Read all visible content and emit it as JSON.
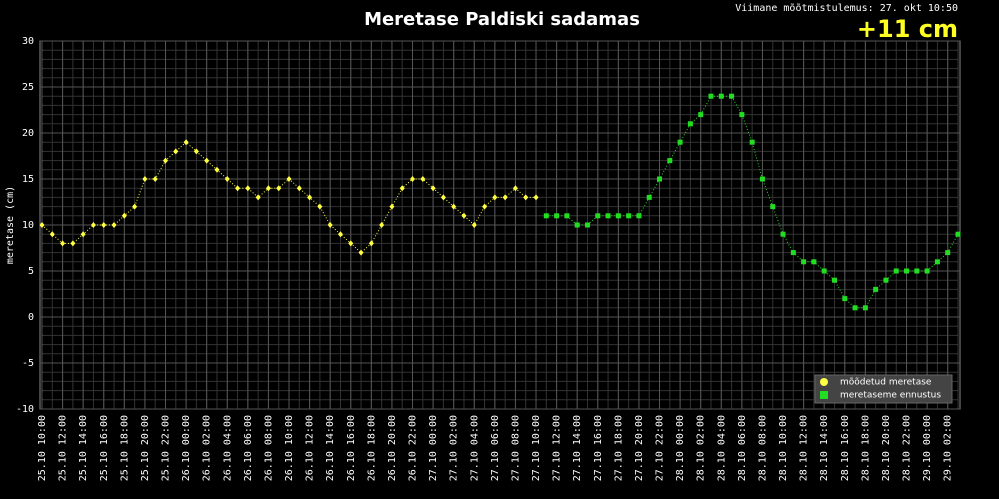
{
  "chart_data": {
    "type": "line",
    "title": "Meretase Paldiski sadamas",
    "subtitle": "Viimane mõõtmistulemus: 27. okt 10:50",
    "annotation": "+11 cm",
    "y_label": "meretase (cm)",
    "categories": [
      "25.10 10:00",
      null,
      "25.10 12:00",
      null,
      "25.10 14:00",
      null,
      "25.10 16:00",
      null,
      "25.10 18:00",
      null,
      "25.10 20:00",
      null,
      "25.10 22:00",
      null,
      "26.10 00:00",
      null,
      "26.10 02:00",
      null,
      "26.10 04:00",
      null,
      "26.10 06:00",
      null,
      "26.10 08:00",
      null,
      "26.10 10:00",
      null,
      "26.10 12:00",
      null,
      "26.10 14:00",
      null,
      "26.10 16:00",
      null,
      "26.10 18:00",
      null,
      "26.10 20:00",
      null,
      "26.10 22:00",
      null,
      "27.10 00:00",
      null,
      "27.10 02:00",
      null,
      "27.10 04:00",
      null,
      "27.10 06:00",
      null,
      "27.10 08:00",
      null,
      "27.10 10:00",
      null,
      "27.10 12:00",
      null,
      "27.10 14:00",
      null,
      "27.10 16:00",
      null,
      "27.10 18:00",
      null,
      "27.10 20:00",
      null,
      "27.10 22:00",
      null,
      "28.10 00:00",
      null,
      "28.10 02:00",
      null,
      "28.10 04:00",
      null,
      "28.10 06:00",
      null,
      "28.10 08:00",
      null,
      "28.10 10:00",
      null,
      "28.10 12:00",
      null,
      "28.10 14:00",
      null,
      "28.10 16:00",
      null,
      "28.10 18:00",
      null,
      "28.10 20:00",
      null,
      "28.10 22:00",
      null,
      "29.10 00:00",
      null,
      "29.10 02:00",
      null
    ],
    "series": [
      {
        "name": "mõõdetud meretase",
        "color": "#ffff44",
        "marker": "diamond",
        "values": [
          10,
          9,
          8,
          8,
          9,
          10,
          10,
          10,
          11,
          12,
          15,
          15,
          17,
          18,
          19,
          18,
          17,
          16,
          15,
          14,
          14,
          13,
          14,
          14,
          15,
          14,
          13,
          12,
          10,
          9,
          8,
          7,
          8,
          10,
          12,
          14,
          15,
          15,
          14,
          13,
          12,
          11,
          10,
          12,
          13,
          13,
          14,
          13,
          13,
          null,
          null,
          null,
          null,
          null,
          null,
          null,
          null,
          null,
          null,
          null,
          null,
          null,
          null,
          null,
          null,
          null,
          null,
          null,
          null,
          null,
          null,
          null,
          null,
          null,
          null,
          null,
          null,
          null,
          null,
          null,
          null,
          null,
          null,
          null,
          null,
          null,
          null,
          null,
          null,
          null
        ]
      },
      {
        "name": "meretaseme ennustus",
        "color": "#22dd22",
        "marker": "square",
        "values": [
          null,
          null,
          null,
          null,
          null,
          null,
          null,
          null,
          null,
          null,
          null,
          null,
          null,
          null,
          null,
          null,
          null,
          null,
          null,
          null,
          null,
          null,
          null,
          null,
          null,
          null,
          null,
          null,
          null,
          null,
          null,
          null,
          null,
          null,
          null,
          null,
          null,
          null,
          null,
          null,
          null,
          null,
          null,
          null,
          null,
          null,
          null,
          null,
          null,
          11,
          11,
          11,
          10,
          10,
          11,
          11,
          11,
          11,
          11,
          13,
          15,
          17,
          19,
          21,
          22,
          24,
          24,
          24,
          22,
          19,
          15,
          12,
          9,
          7,
          6,
          6,
          5,
          4,
          2,
          1,
          1,
          3,
          4,
          5,
          5,
          5,
          5,
          6,
          7,
          9
        ]
      }
    ],
    "ylim": [
      -10,
      30
    ],
    "yticks": [
      -10,
      -5,
      0,
      5,
      10,
      15,
      20,
      25,
      30
    ],
    "grid": true,
    "legend": "lower right"
  }
}
